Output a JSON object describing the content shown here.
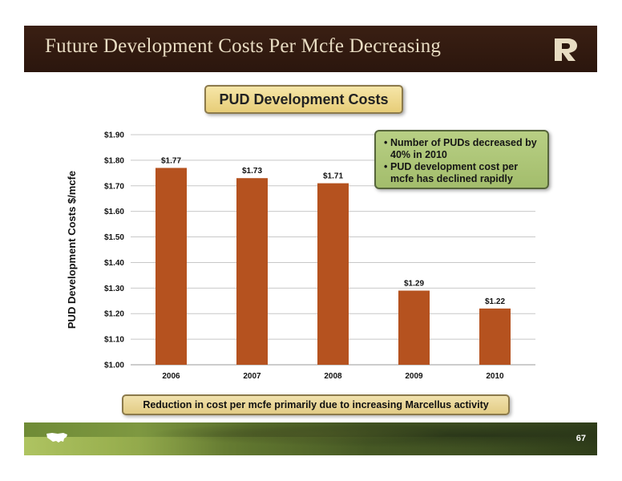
{
  "slide": {
    "title": "Future Development Costs Per Mcfe Decreasing",
    "page_number": "67",
    "logo_icon": "company-r-logo",
    "footer_icon": "us-map-icon"
  },
  "callout": {
    "bullets": [
      "Number of PUDs decreased by 40% in 2010",
      "PUD development cost per mcfe has declined rapidly"
    ]
  },
  "footer_note": {
    "text": "Reduction in cost per mcfe primarily due to increasing Marcellus activity"
  },
  "colors": {
    "header_bg": "#2b160d",
    "header_text": "#e8dcc2",
    "bar": "#b5521f",
    "callout_bg": "#a9c271",
    "title_box_bg": "#f0dc92",
    "gridline": "#c8c8c8"
  },
  "chart_data": {
    "type": "bar",
    "title": "PUD Development Costs",
    "ylabel": "PUD Development Costs $/mcfe",
    "xlabel": "",
    "categories": [
      "2006",
      "2007",
      "2008",
      "2009",
      "2010"
    ],
    "values": [
      1.77,
      1.73,
      1.71,
      1.29,
      1.22
    ],
    "data_labels": [
      "$1.77",
      "$1.73",
      "$1.71",
      "$1.29",
      "$1.22"
    ],
    "ylim": [
      1.0,
      1.9
    ],
    "yticks": [
      "$1.00",
      "$1.10",
      "$1.20",
      "$1.30",
      "$1.40",
      "$1.50",
      "$1.60",
      "$1.70",
      "$1.80",
      "$1.90"
    ],
    "grid": true,
    "legend": "none"
  }
}
